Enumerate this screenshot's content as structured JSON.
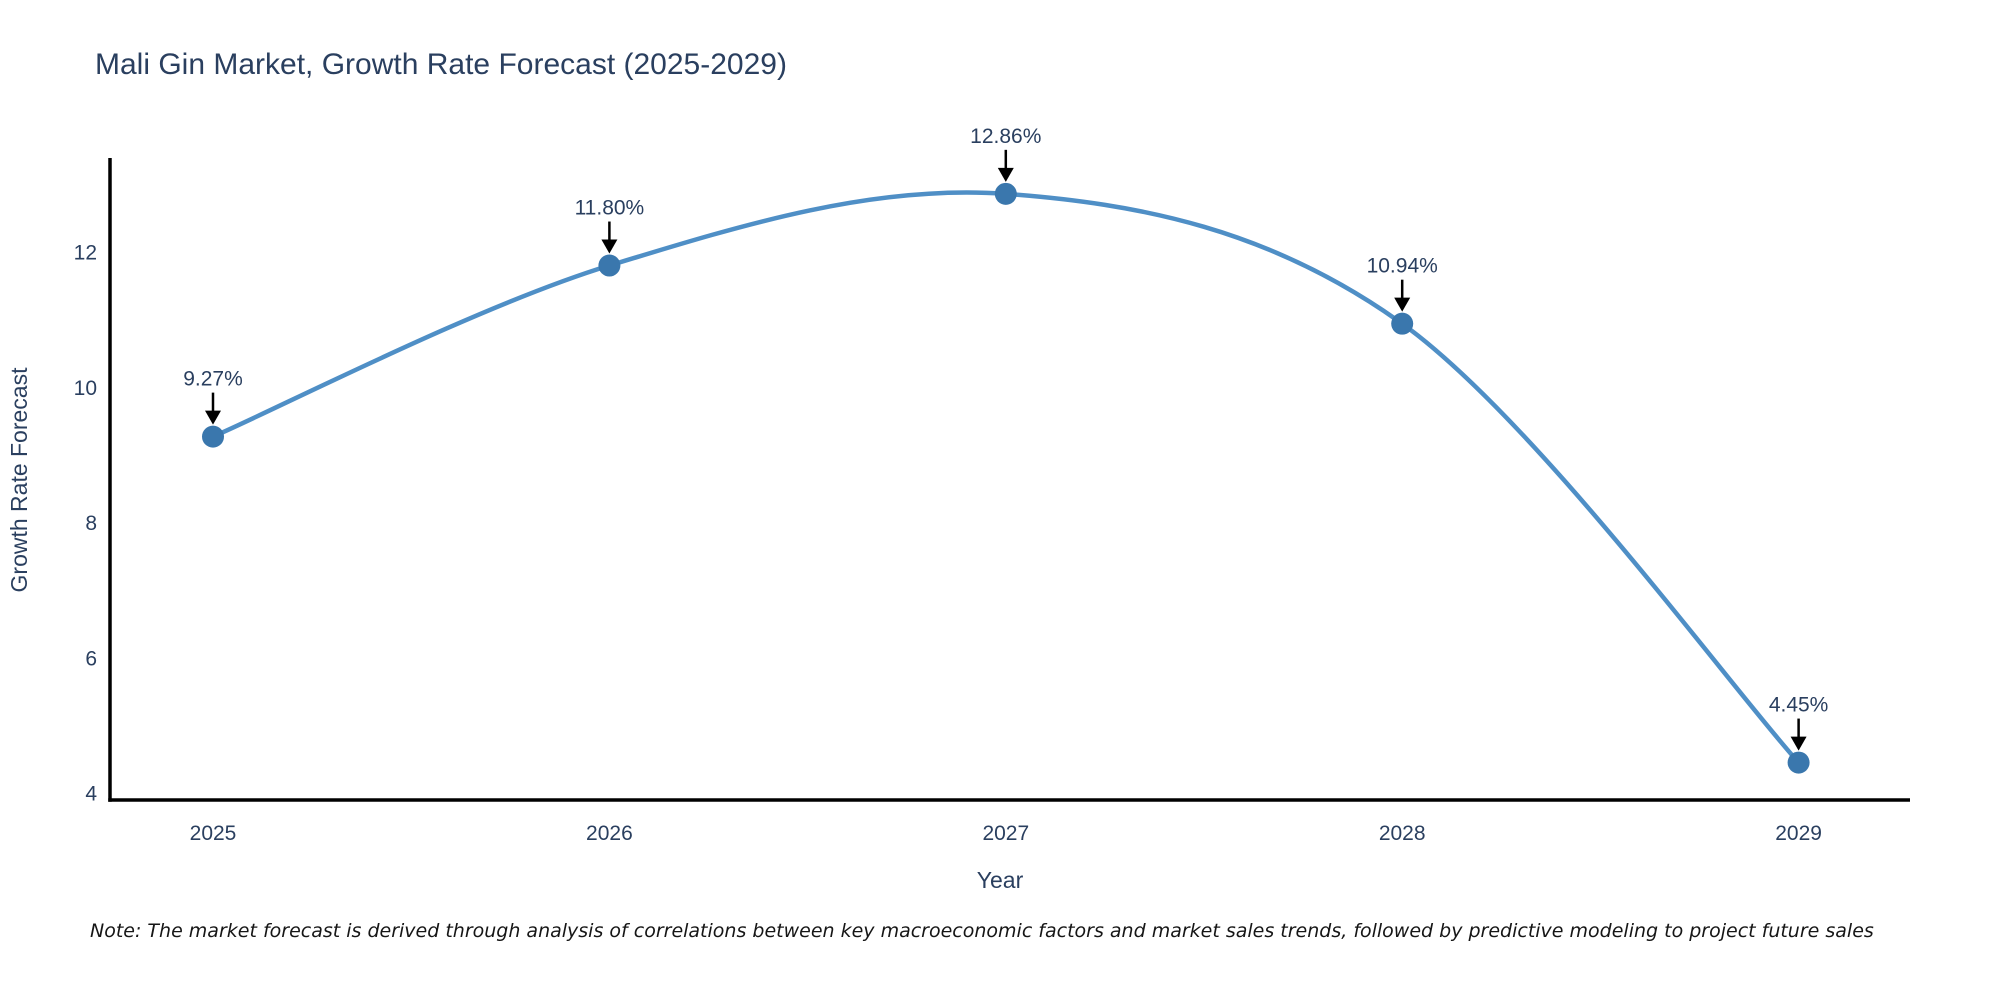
{
  "note": "Note: The market forecast is derived through analysis of correlations between key macroeconomic factors and market sales trends, followed by predictive modeling to project future sales",
  "chart_data": {
    "type": "line",
    "title": "Mali Gin Market, Growth Rate Forecast (2025-2029)",
    "xlabel": "Year",
    "ylabel": "Growth Rate Forecast",
    "x": [
      2025,
      2026,
      2027,
      2028,
      2029
    ],
    "y": [
      9.27,
      11.8,
      12.86,
      10.94,
      4.45
    ],
    "point_labels": [
      "9.27%",
      "11.80%",
      "12.86%",
      "10.94%",
      "4.45%"
    ],
    "yticks": [
      4,
      6,
      8,
      10,
      12
    ],
    "ylim": [
      3.9,
      13.4
    ],
    "line_shape": "spline",
    "grid": false,
    "legend": false,
    "markers": true,
    "annotations": "black down-arrows from percent labels to each data point",
    "colors": {
      "line": "#4f8fc6",
      "marker": "#3a77ad",
      "axis": "#000000",
      "text": "#2a3f5f",
      "arrow": "#000000",
      "background": "#ffffff"
    }
  }
}
